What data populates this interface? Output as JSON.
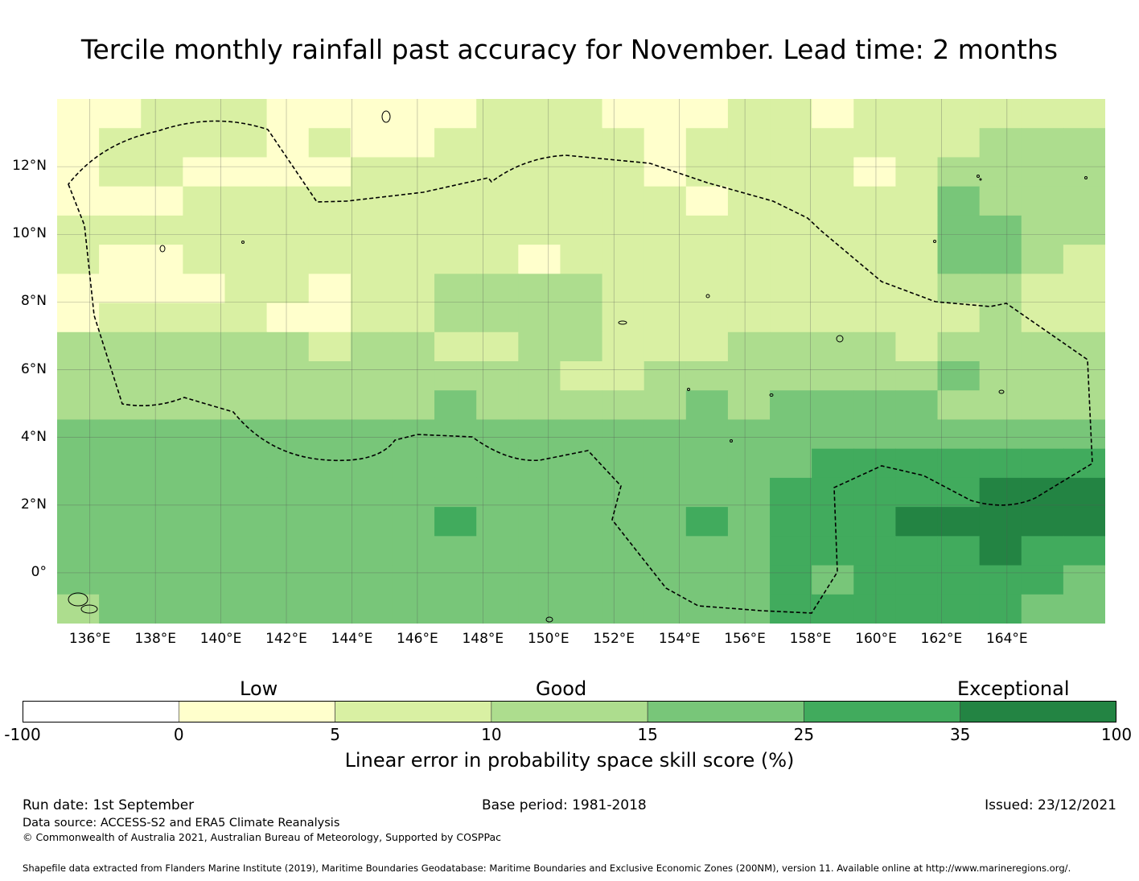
{
  "title": "Tercile monthly rainfall past accuracy for November. Lead time: 2 months",
  "map": {
    "lon_range": [
      135.0,
      167.0
    ],
    "lat_range": [
      -1.5,
      14.0
    ],
    "grid_step_deg": 2,
    "lon_ticks": [
      "136°E",
      "138°E",
      "140°E",
      "142°E",
      "144°E",
      "146°E",
      "148°E",
      "150°E",
      "152°E",
      "154°E",
      "156°E",
      "158°E",
      "160°E",
      "162°E",
      "164°E"
    ],
    "lat_ticks": [
      "12°N",
      "10°N",
      "8°N",
      "6°N",
      "4°N",
      "2°N",
      "0°"
    ],
    "boundary_style": "dashed black line (EEZ)"
  },
  "colorbar": {
    "categories": [
      "Low",
      "Good",
      "Exceptional"
    ],
    "tick_labels": [
      "-100",
      "0",
      "5",
      "10",
      "15",
      "25",
      "35",
      "100"
    ],
    "colors": [
      "#ffffff",
      "#ffffcc",
      "#d9f0a3",
      "#addd8e",
      "#78c679",
      "#41ab5d",
      "#238443"
    ],
    "caption": "Linear error in probability space skill score (%)"
  },
  "footer": {
    "run_date": "Run date: 1st September",
    "base_period": "Base period: 1981-2018",
    "issued": "Issued: 23/12/2021",
    "data_source": "Data source: ACCESS-S2 and ERA5 Climate Reanalysis",
    "copyright": "© Commonwealth of Australia 2021, Australian Bureau of Meteorology, Supported by COSPPac",
    "shapefile_note": "Shapefile data extracted from Flanders Marine Institute (2019), Maritime Boundaries Geodatabase: Maritime Boundaries and Exclusive Economic Zones (200NM), version 11. Available online at http://www.marineregions.org/."
  }
}
